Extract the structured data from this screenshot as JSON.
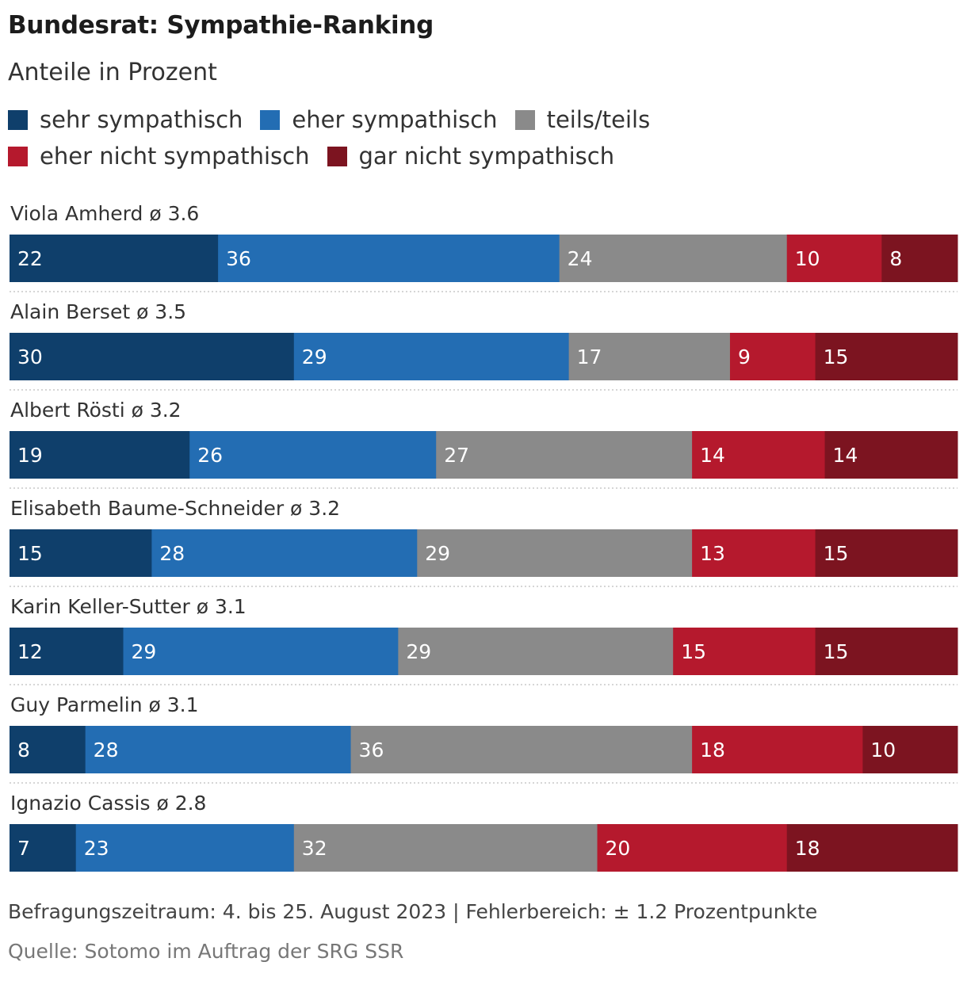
{
  "title": "Bundesrat: Sympathie-Ranking",
  "subtitle": "Anteile in Prozent",
  "note": "Befragungszeitraum: 4. bis 25. August 2023 | Fehlerbereich: ± 1.2 Prozentpunkte",
  "source": "Quelle: Sotomo im Auftrag der SRG SSR",
  "chart_data": {
    "type": "bar",
    "orientation": "horizontal",
    "stacked": true,
    "xlim": [
      0,
      100
    ],
    "legend_position": "top",
    "categories": [
      "Viola Amherd ø 3.6",
      "Alain Berset ø 3.5",
      "Albert Rösti ø 3.2",
      "Elisabeth Baume-Schneider ø 3.2",
      "Karin Keller-Sutter ø 3.1",
      "Guy Parmelin ø 3.1",
      "Ignazio Cassis ø 2.8"
    ],
    "series": [
      {
        "name": "sehr sympathisch",
        "color": "#0f3f6b",
        "values": [
          22,
          30,
          19,
          15,
          12,
          8,
          7
        ]
      },
      {
        "name": "eher sympathisch",
        "color": "#236db3",
        "values": [
          36,
          29,
          26,
          28,
          29,
          28,
          23
        ]
      },
      {
        "name": "teils/teils",
        "color": "#8a8a8a",
        "values": [
          24,
          17,
          27,
          29,
          29,
          36,
          32
        ]
      },
      {
        "name": "eher nicht sympathisch",
        "color": "#b5192d",
        "values": [
          10,
          9,
          14,
          13,
          15,
          18,
          20
        ]
      },
      {
        "name": "gar nicht sympathisch",
        "color": "#7c1420",
        "values": [
          8,
          15,
          14,
          15,
          15,
          10,
          18
        ]
      }
    ]
  }
}
